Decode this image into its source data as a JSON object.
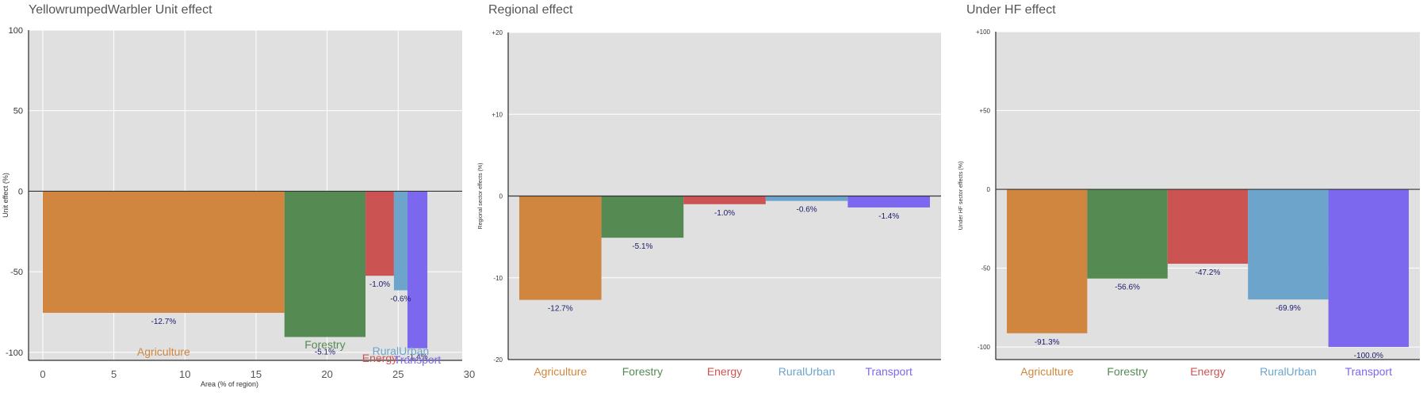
{
  "colors": {
    "agriculture": "#D0863E",
    "forestry": "#558A53",
    "energy": "#CB5453",
    "ruralurban": "#6CA4CC",
    "transport": "#7B68EE",
    "plot_bg": "#E0E0E0",
    "grid": "#FFFFFF",
    "value_label": "#1A1A6E"
  },
  "chart_data": [
    {
      "type": "bar",
      "title": "YellowrumpedWarbler Unit effect",
      "xlabel": "Area (% of region)",
      "ylabel": "Unit effect (%)",
      "xlim": [
        -1,
        29.5
      ],
      "ylim": [
        -105,
        100
      ],
      "xticks": [
        "0",
        "5",
        "10",
        "15",
        "20",
        "25",
        "30"
      ],
      "yticks": [
        "100",
        "50",
        "0",
        "-50",
        "-100"
      ],
      "grid": true,
      "series": [
        {
          "name": "Agriculture",
          "area_start": 0.0,
          "area_width": 17.0,
          "value": -75.5,
          "label": "-12.7%"
        },
        {
          "name": "Forestry",
          "area_start": 17.0,
          "area_width": 5.7,
          "value": -90.5,
          "label": "-5.1%"
        },
        {
          "name": "Energy",
          "area_start": 22.7,
          "area_width": 2.0,
          "value": -52.5,
          "label": "-1.0%"
        },
        {
          "name": "RuralUrban",
          "area_start": 24.7,
          "area_width": 0.95,
          "value": -61.5,
          "label": "-0.6%"
        },
        {
          "name": "Transport",
          "area_start": 25.65,
          "area_width": 1.4,
          "value": -97.5,
          "label": "-1.4%"
        }
      ]
    },
    {
      "type": "bar",
      "title": "Regional effect",
      "xlabel": "",
      "ylabel": "Regional sector effects (%)",
      "ylim": [
        -20,
        20
      ],
      "yticks": [
        "+20",
        "+10",
        "0",
        "-10",
        "-20"
      ],
      "grid": true,
      "categories": [
        "Agriculture",
        "Forestry",
        "Energy",
        "RuralUrban",
        "Transport"
      ],
      "values": [
        -12.7,
        -5.1,
        -1.0,
        -0.6,
        -1.4
      ],
      "labels": [
        "-12.7%",
        "-5.1%",
        "-1.0%",
        "-0.6%",
        "-1.4%"
      ]
    },
    {
      "type": "bar",
      "title": "Under HF effect",
      "xlabel": "",
      "ylabel": "Under HF sector effects (%)",
      "ylim": [
        -108,
        100
      ],
      "yticks": [
        "+100",
        "+50",
        "0",
        "-50",
        "-100"
      ],
      "grid": true,
      "categories": [
        "Agriculture",
        "Forestry",
        "Energy",
        "RuralUrban",
        "Transport"
      ],
      "values": [
        -91.3,
        -56.6,
        -47.2,
        -69.9,
        -100.0
      ],
      "labels": [
        "-91.3%",
        "-56.6%",
        "-47.2%",
        "-69.9%",
        "-100.0%"
      ]
    }
  ]
}
